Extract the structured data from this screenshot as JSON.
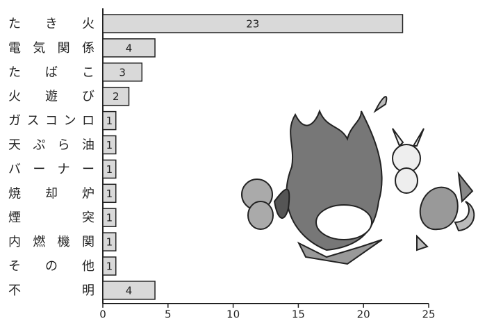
{
  "chart_data": {
    "type": "bar",
    "orientation": "horizontal",
    "categories": [
      "たき火",
      "電気関係",
      "たばこ",
      "火遊び",
      "ガスコンロ",
      "天ぷら油",
      "バーナー",
      "焼却炉",
      "煙突",
      "内燃機関",
      "その他",
      "不明"
    ],
    "values": [
      23,
      4,
      3,
      2,
      1,
      1,
      1,
      1,
      1,
      1,
      1,
      4
    ],
    "color": "#d9d9d9",
    "xlim": [
      0,
      25
    ],
    "xticks": [
      0,
      5,
      10,
      15,
      20,
      25
    ]
  }
}
